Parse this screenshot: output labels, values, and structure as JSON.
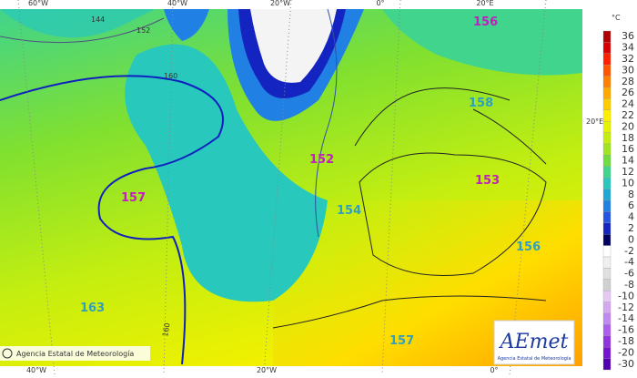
{
  "map": {
    "top_labels": [
      "60°W",
      "40°W",
      "20°W",
      "0°",
      "20°E"
    ],
    "bottom_labels": [
      "40°W",
      "20°W",
      "0°"
    ],
    "right_label": "20°E",
    "isoline_labels": [
      "144",
      "152",
      "160",
      "160"
    ],
    "height_labels": [
      "156",
      "158",
      "152",
      "157",
      "153",
      "154",
      "156",
      "163",
      "157"
    ],
    "copyright": "Agencia Estatal de Meteorología"
  },
  "logo": {
    "name": "AEmet",
    "subtitle": "Agencia Estatal de Meteorología"
  },
  "colorbar": {
    "unit": "°C",
    "ticks": [
      36,
      34,
      32,
      30,
      28,
      26,
      24,
      22,
      20,
      18,
      16,
      14,
      12,
      10,
      8,
      6,
      4,
      2,
      0,
      -2,
      -4,
      -6,
      -8,
      -10,
      -12,
      -14,
      -16,
      -18,
      -20,
      -30
    ],
    "colors": [
      "#b00000",
      "#d80000",
      "#ff2000",
      "#ff5500",
      "#ff8000",
      "#ffa800",
      "#ffcc00",
      "#ffee00",
      "#e4f400",
      "#c4ee10",
      "#a0e620",
      "#70dc40",
      "#40d48c",
      "#28c8bc",
      "#20a8d4",
      "#2080e4",
      "#2454e0",
      "#1424c0",
      "#000060",
      "#ffffff",
      "#f0f0f0",
      "#e0e0e0",
      "#d0d0d0",
      "#e6c8f4",
      "#d4a8f0",
      "#c088f0",
      "#aa60ec",
      "#9034e0",
      "#7414d0",
      "#5000b0"
    ]
  }
}
